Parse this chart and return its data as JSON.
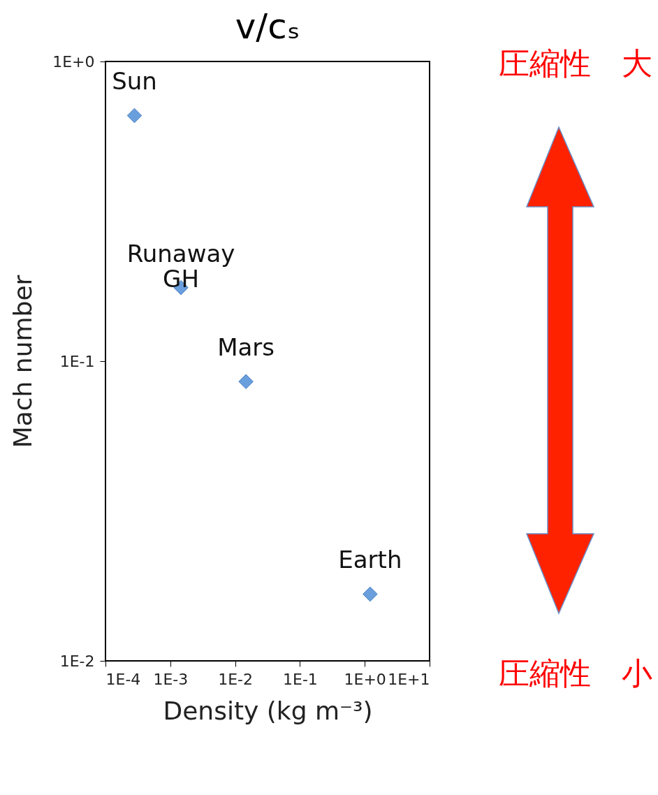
{
  "chart_data": {
    "type": "scatter",
    "title": "v/cₛ",
    "xlabel": "Density (kg m⁻³)",
    "ylabel": "Mach number",
    "x": [
      0.00028,
      0.00146,
      0.0147,
      1.21
    ],
    "series": [
      {
        "color": "#6a9fde",
        "values": [
          0.66,
          0.176,
          0.0855,
          0.0167
        ]
      }
    ],
    "log": "xy",
    "grid": false,
    "marker": "diamond",
    "xlim": [
      0.0001,
      10
    ],
    "ylim": [
      0.01,
      1
    ],
    "xticks": [
      {
        "value": 0.0001,
        "label": "1E-4"
      },
      {
        "value": 0.001,
        "label": "1E-3"
      },
      {
        "value": 0.01,
        "label": "1E-2"
      },
      {
        "value": 0.1,
        "label": "1E-1"
      },
      {
        "value": 1,
        "label": "1E+0"
      },
      {
        "value": 10,
        "label": "1E+1"
      }
    ],
    "yticks": [
      {
        "value": 0.01,
        "label": "1E-2"
      },
      {
        "value": 0.1,
        "label": "1E-1"
      },
      {
        "value": 1,
        "label": "1E+0"
      }
    ],
    "annotations": [
      {
        "text": "Sun",
        "x": 0.00028,
        "y": 0.66
      },
      {
        "text": "Runaway GH",
        "x": 0.00146,
        "y": 0.176
      },
      {
        "text": "Mars",
        "x": 0.0147,
        "y": 0.0855
      },
      {
        "text": "Earth",
        "x": 1.21,
        "y": 0.0167
      },
      "圧縮性　大",
      "圧縮性　小"
    ]
  }
}
